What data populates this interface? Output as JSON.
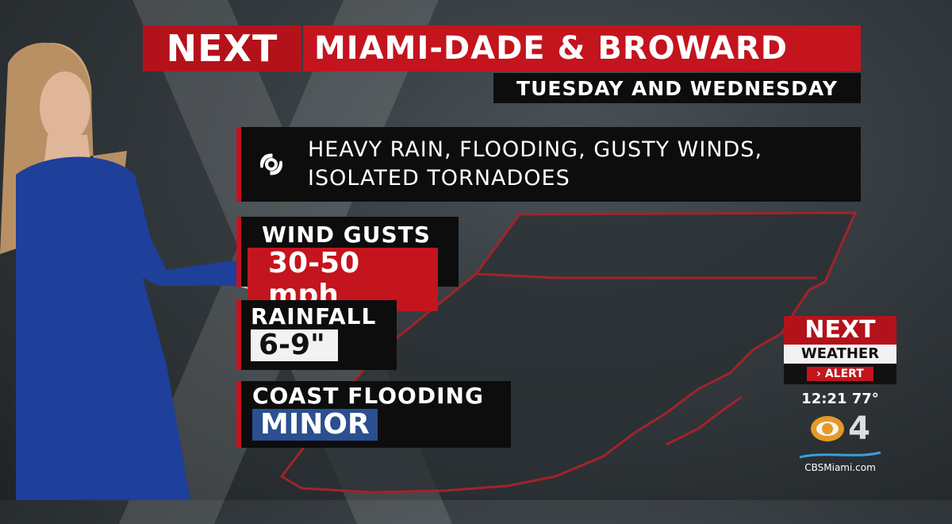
{
  "header": {
    "logo": "NEXT",
    "title": "MIAMI-DADE & BROWARD",
    "subtitle": "TUESDAY AND WEDNESDAY"
  },
  "hazards": {
    "icon": "hurricane-icon",
    "line1": "HEAVY RAIN, FLOODING, GUSTY WINDS,",
    "line2": "ISOLATED TORNADOES"
  },
  "wind": {
    "label": "WIND GUSTS",
    "value": "30-50 mph"
  },
  "rainfall": {
    "label": "RAINFALL",
    "value": "6-9\""
  },
  "coast": {
    "label": "COAST FLOODING",
    "value": "MINOR"
  },
  "bug": {
    "next": "NEXT",
    "weather": "WEATHER",
    "alert": "ALERT",
    "time": "12:21",
    "temp": "77°",
    "channel": "4",
    "site": "CBSMiami.com"
  },
  "colors": {
    "red": "#c4141e",
    "black": "#0d0d0d",
    "blue": "#2b4f8f",
    "white_box": "#f2f2f2"
  }
}
